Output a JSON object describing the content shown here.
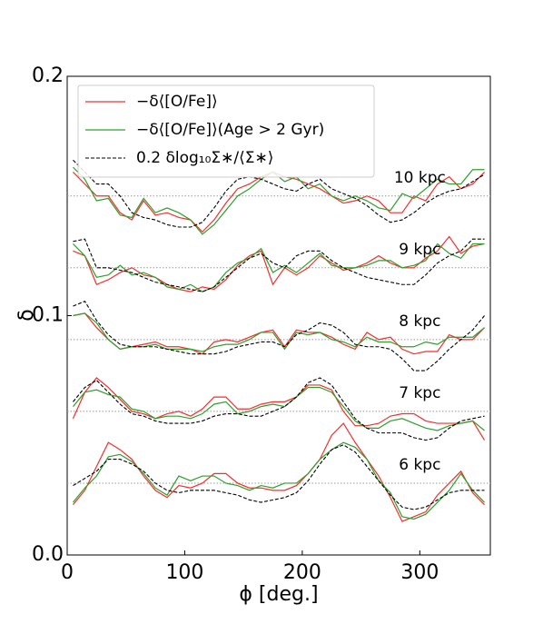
{
  "chart_data": {
    "type": "line",
    "xlabel": "ϕ [deg.]",
    "ylabel": "δ",
    "xlim": [
      0,
      360
    ],
    "ylim": [
      0,
      0.2
    ],
    "xticks": [
      0,
      100,
      200,
      300
    ],
    "yticks": [
      {
        "value": 0,
        "label": "0.0"
      },
      {
        "value": 0.1,
        "label": "0.1"
      },
      {
        "value": 0.2,
        "label": "0.2"
      }
    ],
    "legend_position": "upper left",
    "legend": [
      {
        "name": "−δ⟨[O/Fe]⟩",
        "color": "#ff2a2a",
        "style": "solid"
      },
      {
        "name": "−δ⟨[O/Fe]⟩(Age > 2 Gyr)",
        "color": "#2ca02c",
        "style": "solid"
      },
      {
        "name": "0.2 δlog₁₀Σ∗/⟨Σ∗⟩",
        "color": "#000000",
        "style": "dashed"
      }
    ],
    "x": [
      5,
      15,
      25,
      35,
      45,
      55,
      65,
      75,
      85,
      95,
      105,
      115,
      125,
      135,
      145,
      155,
      165,
      175,
      185,
      195,
      205,
      215,
      225,
      235,
      245,
      255,
      265,
      275,
      285,
      295,
      305,
      315,
      325,
      335,
      345,
      355
    ],
    "groups": [
      {
        "label": "10 kpc",
        "reference": 0.15,
        "series": [
          [
            0.16,
            0.155,
            0.15,
            0.15,
            0.143,
            0.14,
            0.148,
            0.142,
            0.143,
            0.141,
            0.14,
            0.135,
            0.14,
            0.147,
            0.153,
            0.155,
            0.158,
            0.16,
            0.158,
            0.157,
            0.155,
            0.153,
            0.15,
            0.147,
            0.148,
            0.15,
            0.148,
            0.143,
            0.143,
            0.15,
            0.148,
            0.155,
            0.158,
            0.153,
            0.155,
            0.16
          ],
          [
            0.162,
            0.157,
            0.148,
            0.149,
            0.142,
            0.141,
            0.149,
            0.143,
            0.145,
            0.143,
            0.14,
            0.134,
            0.138,
            0.144,
            0.15,
            0.153,
            0.157,
            0.16,
            0.156,
            0.158,
            0.153,
            0.155,
            0.15,
            0.148,
            0.15,
            0.148,
            0.145,
            0.144,
            0.151,
            0.149,
            0.153,
            0.157,
            0.155,
            0.155,
            0.161,
            0.161
          ],
          [
            0.165,
            0.16,
            0.155,
            0.155,
            0.15,
            0.143,
            0.141,
            0.14,
            0.138,
            0.137,
            0.137,
            0.139,
            0.145,
            0.152,
            0.157,
            0.158,
            0.157,
            0.155,
            0.153,
            0.152,
            0.155,
            0.157,
            0.153,
            0.151,
            0.149,
            0.146,
            0.142,
            0.139,
            0.14,
            0.143,
            0.147,
            0.15,
            0.152,
            0.153,
            0.156,
            0.159
          ]
        ]
      },
      {
        "label": "9 kpc",
        "reference": 0.12,
        "series": [
          [
            0.127,
            0.125,
            0.113,
            0.115,
            0.118,
            0.12,
            0.117,
            0.116,
            0.113,
            0.111,
            0.11,
            0.112,
            0.111,
            0.115,
            0.121,
            0.125,
            0.127,
            0.113,
            0.12,
            0.117,
            0.12,
            0.125,
            0.122,
            0.119,
            0.12,
            0.122,
            0.125,
            0.122,
            0.12,
            0.12,
            0.124,
            0.127,
            0.133,
            0.126,
            0.129,
            0.13
          ],
          [
            0.13,
            0.125,
            0.116,
            0.117,
            0.121,
            0.117,
            0.118,
            0.116,
            0.112,
            0.111,
            0.113,
            0.11,
            0.112,
            0.118,
            0.122,
            0.124,
            0.128,
            0.118,
            0.121,
            0.118,
            0.122,
            0.126,
            0.121,
            0.12,
            0.12,
            0.121,
            0.123,
            0.123,
            0.12,
            0.121,
            0.123,
            0.13,
            0.126,
            0.124,
            0.13,
            0.13
          ],
          [
            0.131,
            0.132,
            0.12,
            0.12,
            0.119,
            0.118,
            0.116,
            0.114,
            0.113,
            0.112,
            0.111,
            0.11,
            0.112,
            0.116,
            0.12,
            0.124,
            0.126,
            0.122,
            0.12,
            0.125,
            0.127,
            0.127,
            0.123,
            0.12,
            0.118,
            0.116,
            0.115,
            0.114,
            0.113,
            0.113,
            0.117,
            0.122,
            0.125,
            0.127,
            0.132,
            0.132
          ]
        ]
      },
      {
        "label": "8 kpc",
        "reference": 0.09,
        "series": [
          [
            0.1,
            0.101,
            0.095,
            0.09,
            0.086,
            0.087,
            0.088,
            0.089,
            0.087,
            0.087,
            0.086,
            0.084,
            0.089,
            0.09,
            0.089,
            0.091,
            0.093,
            0.094,
            0.087,
            0.094,
            0.093,
            0.093,
            0.091,
            0.088,
            0.086,
            0.093,
            0.09,
            0.091,
            0.086,
            0.084,
            0.085,
            0.085,
            0.092,
            0.09,
            0.09,
            0.095
          ],
          [
            0.1,
            0.101,
            0.097,
            0.09,
            0.086,
            0.087,
            0.087,
            0.088,
            0.086,
            0.086,
            0.086,
            0.085,
            0.087,
            0.088,
            0.088,
            0.09,
            0.093,
            0.093,
            0.086,
            0.093,
            0.092,
            0.093,
            0.09,
            0.089,
            0.087,
            0.091,
            0.089,
            0.089,
            0.087,
            0.087,
            0.089,
            0.088,
            0.091,
            0.091,
            0.091,
            0.095
          ],
          [
            0.104,
            0.106,
            0.098,
            0.092,
            0.088,
            0.087,
            0.087,
            0.087,
            0.086,
            0.085,
            0.084,
            0.084,
            0.084,
            0.085,
            0.087,
            0.088,
            0.089,
            0.089,
            0.087,
            0.092,
            0.094,
            0.097,
            0.096,
            0.093,
            0.088,
            0.087,
            0.087,
            0.086,
            0.082,
            0.077,
            0.077,
            0.081,
            0.086,
            0.09,
            0.094,
            0.1
          ]
        ]
      },
      {
        "label": "7 kpc",
        "reference": 0.06,
        "series": [
          [
            0.057,
            0.068,
            0.074,
            0.07,
            0.065,
            0.06,
            0.059,
            0.057,
            0.059,
            0.06,
            0.058,
            0.061,
            0.066,
            0.066,
            0.061,
            0.061,
            0.063,
            0.064,
            0.064,
            0.066,
            0.071,
            0.071,
            0.069,
            0.06,
            0.054,
            0.054,
            0.055,
            0.058,
            0.059,
            0.059,
            0.056,
            0.055,
            0.055,
            0.055,
            0.056,
            0.048
          ],
          [
            0.062,
            0.068,
            0.069,
            0.067,
            0.066,
            0.061,
            0.06,
            0.057,
            0.058,
            0.058,
            0.057,
            0.059,
            0.063,
            0.064,
            0.059,
            0.06,
            0.062,
            0.063,
            0.062,
            0.066,
            0.07,
            0.07,
            0.068,
            0.062,
            0.056,
            0.053,
            0.053,
            0.056,
            0.057,
            0.055,
            0.053,
            0.052,
            0.054,
            0.055,
            0.056,
            0.052
          ],
          [
            0.064,
            0.07,
            0.073,
            0.068,
            0.063,
            0.059,
            0.058,
            0.056,
            0.055,
            0.055,
            0.055,
            0.056,
            0.058,
            0.059,
            0.059,
            0.058,
            0.058,
            0.06,
            0.062,
            0.066,
            0.072,
            0.074,
            0.071,
            0.064,
            0.057,
            0.053,
            0.051,
            0.051,
            0.051,
            0.049,
            0.048,
            0.049,
            0.053,
            0.056,
            0.057,
            0.058
          ]
        ]
      },
      {
        "label": "6 kpc",
        "reference": 0.03,
        "series": [
          [
            0.021,
            0.027,
            0.037,
            0.047,
            0.044,
            0.04,
            0.033,
            0.027,
            0.024,
            0.029,
            0.028,
            0.03,
            0.034,
            0.034,
            0.03,
            0.028,
            0.028,
            0.027,
            0.027,
            0.029,
            0.034,
            0.04,
            0.05,
            0.055,
            0.047,
            0.04,
            0.033,
            0.024,
            0.014,
            0.016,
            0.018,
            0.025,
            0.03,
            0.035,
            0.026,
            0.021
          ],
          [
            0.022,
            0.028,
            0.033,
            0.041,
            0.042,
            0.039,
            0.034,
            0.028,
            0.025,
            0.033,
            0.031,
            0.033,
            0.033,
            0.03,
            0.029,
            0.027,
            0.029,
            0.028,
            0.03,
            0.03,
            0.034,
            0.04,
            0.044,
            0.047,
            0.045,
            0.04,
            0.031,
            0.026,
            0.016,
            0.015,
            0.017,
            0.022,
            0.027,
            0.034,
            0.027,
            0.022
          ],
          [
            0.029,
            0.032,
            0.035,
            0.04,
            0.04,
            0.038,
            0.035,
            0.03,
            0.027,
            0.026,
            0.027,
            0.027,
            0.027,
            0.026,
            0.025,
            0.023,
            0.022,
            0.023,
            0.024,
            0.026,
            0.031,
            0.038,
            0.044,
            0.046,
            0.043,
            0.037,
            0.031,
            0.025,
            0.02,
            0.019,
            0.02,
            0.023,
            0.026,
            0.027,
            0.027,
            0.027
          ]
        ]
      }
    ]
  }
}
